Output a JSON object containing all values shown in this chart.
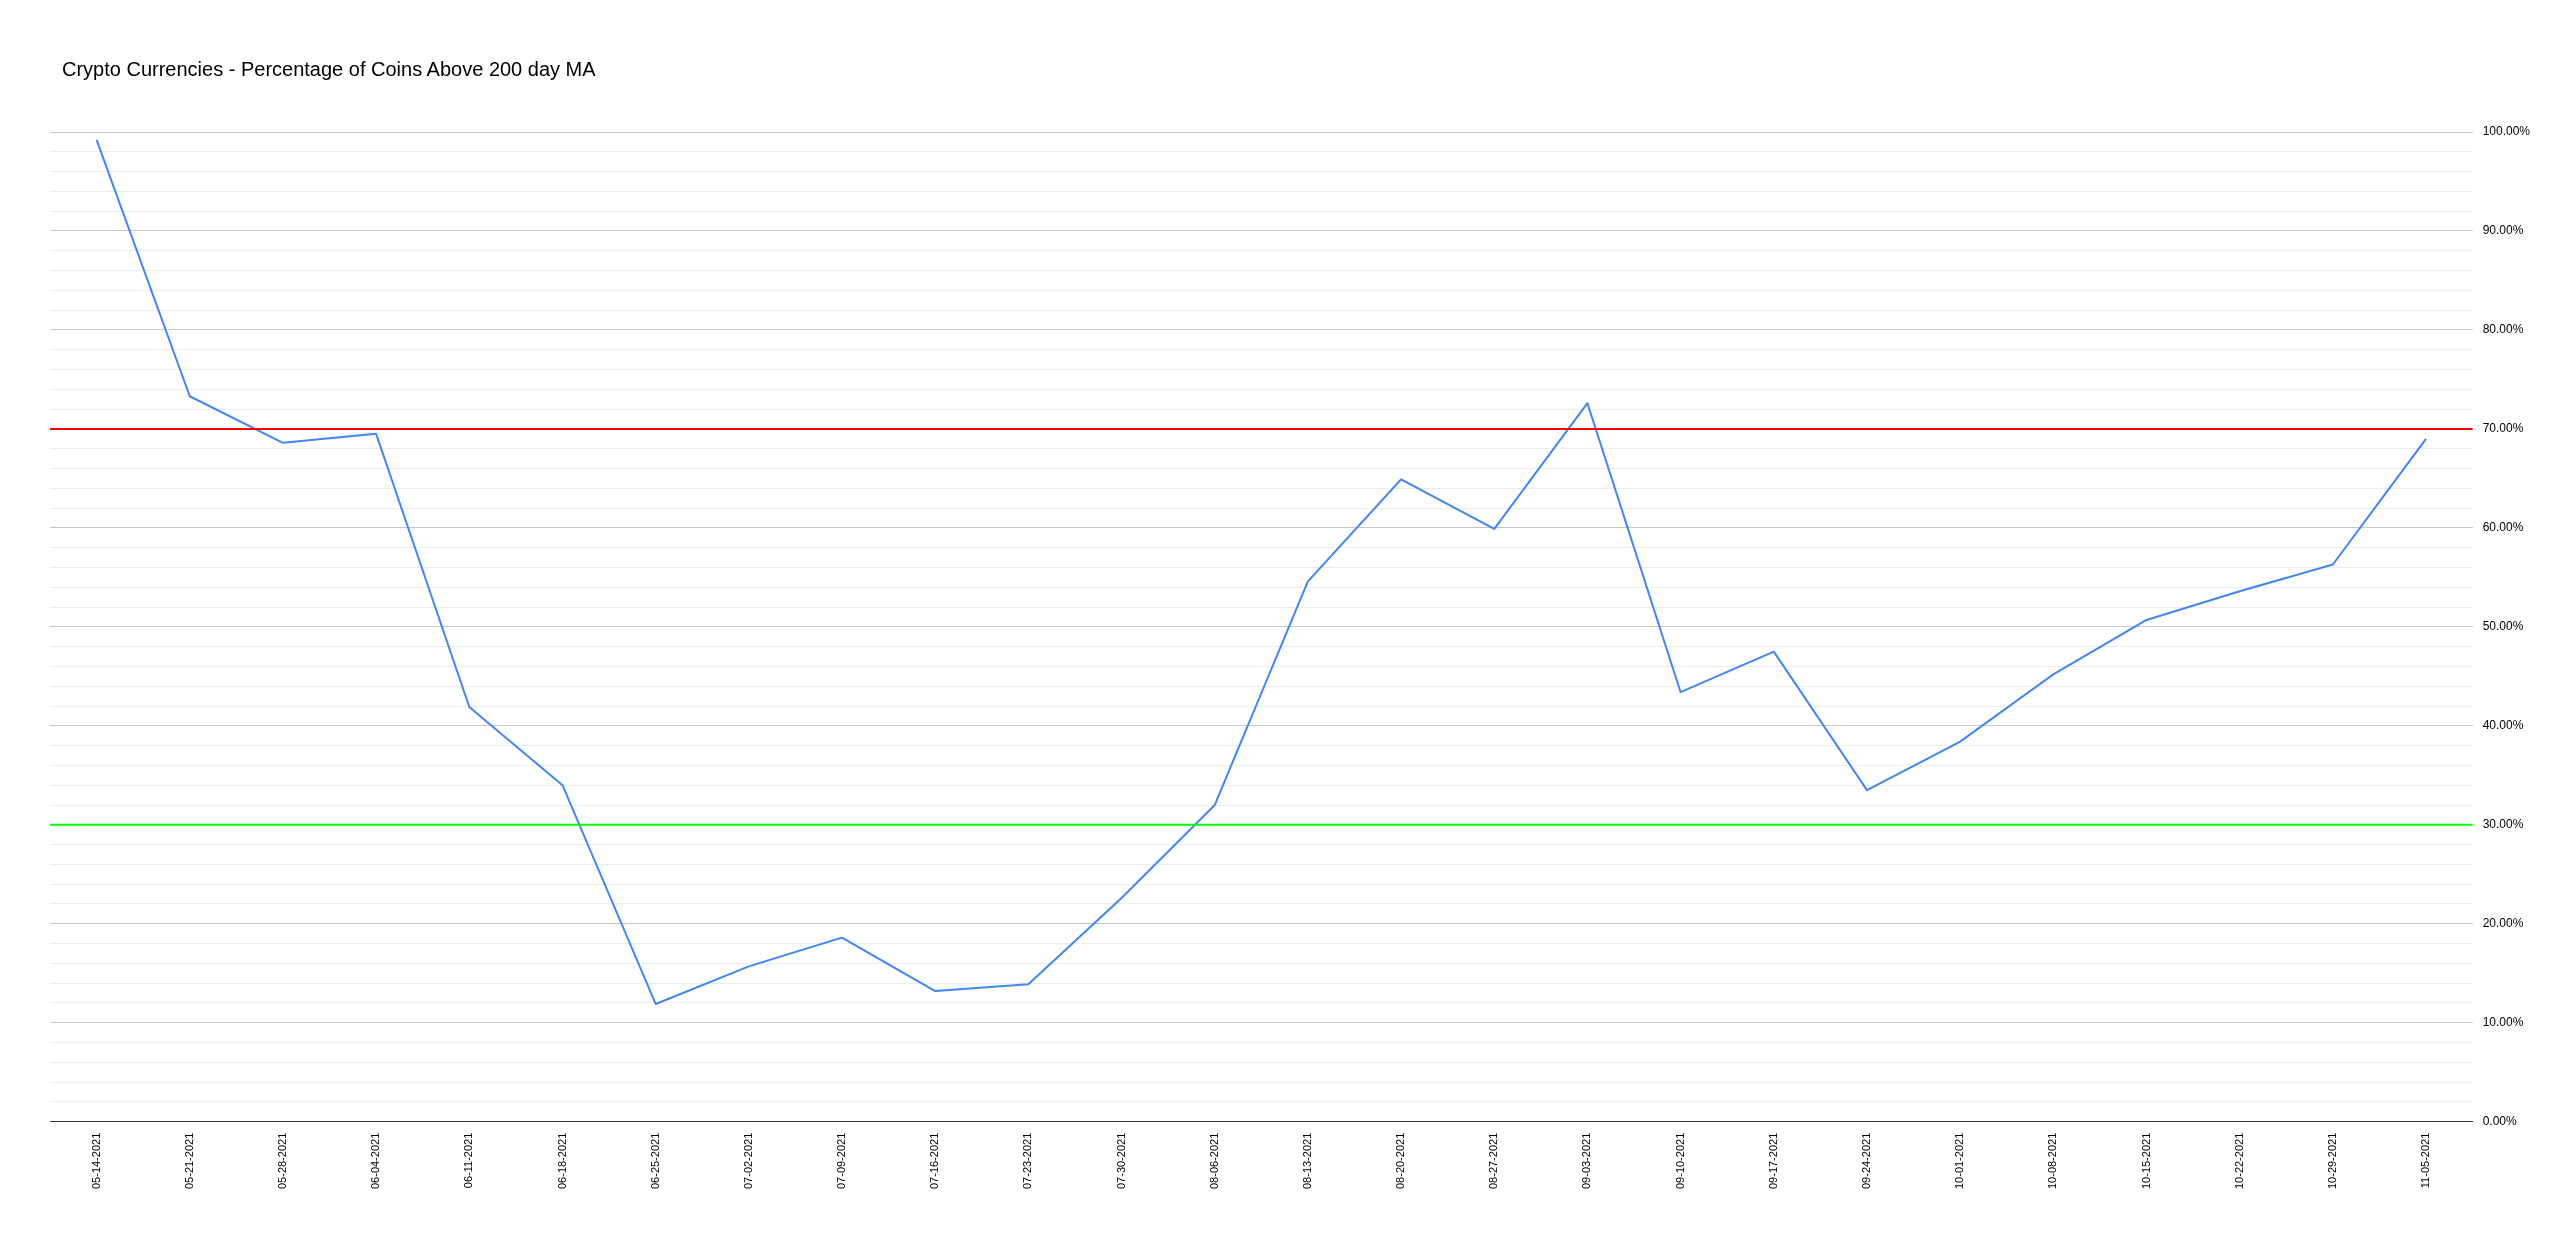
{
  "chart_data": {
    "type": "line",
    "title": "Crypto Currencies - Percentage of Coins Above 200 day MA",
    "categories": [
      "05-14-2021",
      "05-21-2021",
      "05-28-2021",
      "06-04-2021",
      "06-11-2021",
      "06-18-2021",
      "06-25-2021",
      "07-02-2021",
      "07-09-2021",
      "07-16-2021",
      "07-23-2021",
      "07-30-2021",
      "08-06-2021",
      "08-13-2021",
      "08-20-2021",
      "08-27-2021",
      "09-03-2021",
      "09-10-2021",
      "09-17-2021",
      "09-24-2021",
      "10-01-2021",
      "10-08-2021",
      "10-15-2021",
      "10-22-2021",
      "10-29-2021",
      "11-05-2021"
    ],
    "series": [
      {
        "color": "#4285f4",
        "values": [
          99.2,
          73.3,
          68.6,
          69.5,
          41.9,
          34.0,
          11.9,
          15.7,
          18.6,
          13.2,
          13.9,
          22.6,
          32.0,
          54.6,
          64.9,
          59.9,
          72.6,
          43.4,
          47.5,
          33.5,
          38.4,
          45.2,
          50.7,
          53.6,
          56.3,
          69.0
        ]
      }
    ],
    "ylim": [
      0,
      100
    ],
    "yticks": [
      {
        "value": 0,
        "label": "0.00%"
      },
      {
        "value": 2,
        "label": null
      },
      {
        "value": 4,
        "label": null
      },
      {
        "value": 6,
        "label": null
      },
      {
        "value": 8,
        "label": null
      },
      {
        "value": 10,
        "label": "10.00%"
      },
      {
        "value": 12,
        "label": null
      },
      {
        "value": 14,
        "label": null
      },
      {
        "value": 16,
        "label": null
      },
      {
        "value": 18,
        "label": null
      },
      {
        "value": 20,
        "label": "20.00%"
      },
      {
        "value": 22,
        "label": null
      },
      {
        "value": 24,
        "label": null
      },
      {
        "value": 26,
        "label": null
      },
      {
        "value": 28,
        "label": null
      },
      {
        "value": 30,
        "label": "30.00%"
      },
      {
        "value": 32,
        "label": null
      },
      {
        "value": 34,
        "label": null
      },
      {
        "value": 36,
        "label": null
      },
      {
        "value": 38,
        "label": null
      },
      {
        "value": 40,
        "label": "40.00%"
      },
      {
        "value": 42,
        "label": null
      },
      {
        "value": 44,
        "label": null
      },
      {
        "value": 46,
        "label": null
      },
      {
        "value": 48,
        "label": null
      },
      {
        "value": 50,
        "label": "50.00%"
      },
      {
        "value": 52,
        "label": null
      },
      {
        "value": 54,
        "label": null
      },
      {
        "value": 56,
        "label": null
      },
      {
        "value": 58,
        "label": null
      },
      {
        "value": 60,
        "label": "60.00%"
      },
      {
        "value": 62,
        "label": null
      },
      {
        "value": 64,
        "label": null
      },
      {
        "value": 66,
        "label": null
      },
      {
        "value": 68,
        "label": null
      },
      {
        "value": 70,
        "label": "70.00%"
      },
      {
        "value": 72,
        "label": null
      },
      {
        "value": 74,
        "label": null
      },
      {
        "value": 76,
        "label": null
      },
      {
        "value": 78,
        "label": null
      },
      {
        "value": 80,
        "label": "80.00%"
      },
      {
        "value": 82,
        "label": null
      },
      {
        "value": 84,
        "label": null
      },
      {
        "value": 86,
        "label": null
      },
      {
        "value": 88,
        "label": null
      },
      {
        "value": 90,
        "label": "90.00%"
      },
      {
        "value": 92,
        "label": null
      },
      {
        "value": 94,
        "label": null
      },
      {
        "value": 96,
        "label": null
      },
      {
        "value": 98,
        "label": null
      },
      {
        "value": 100,
        "label": "100.00%"
      }
    ],
    "grid": "y",
    "marker": "none",
    "line_style": "solid",
    "legend": false,
    "ref_lines": [
      {
        "axis": "y",
        "value": 70,
        "color": "#ff0000"
      },
      {
        "axis": "y",
        "value": 30,
        "color": "#00ff00"
      }
    ]
  }
}
